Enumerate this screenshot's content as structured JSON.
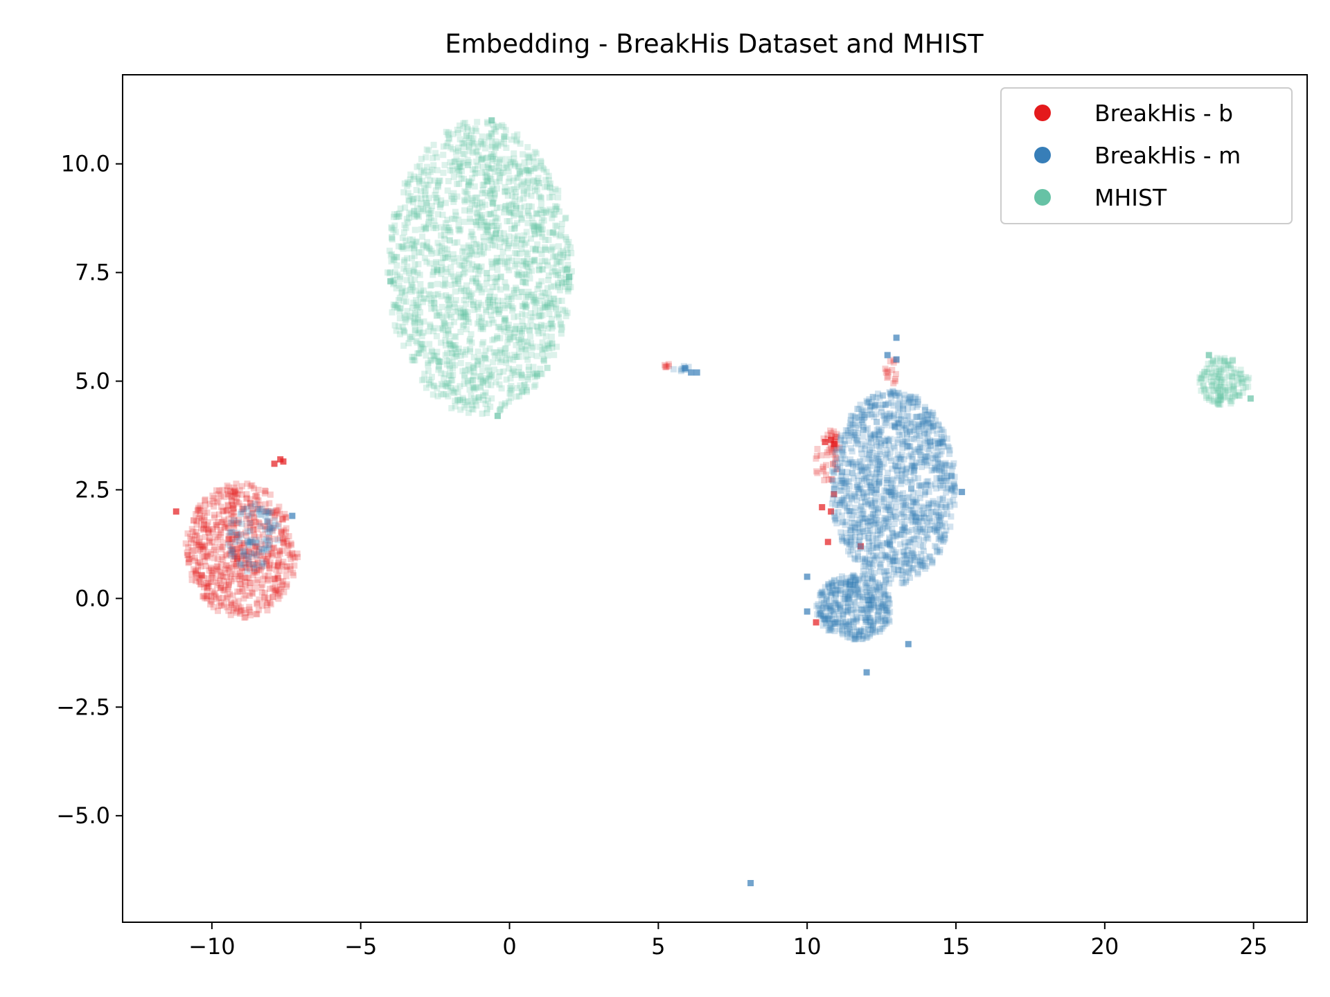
{
  "chart_data": {
    "type": "scatter",
    "title": "Embedding - BreakHis Dataset and MHIST",
    "xlabel": "",
    "ylabel": "",
    "xlim": [
      -13,
      26.8
    ],
    "ylim": [
      -7.45,
      12.05
    ],
    "xticks": [
      -10,
      -5,
      0,
      5,
      10,
      15,
      20,
      25
    ],
    "xtick_labels": [
      "−10",
      "−5",
      "0",
      "5",
      "10",
      "15",
      "20",
      "25"
    ],
    "yticks": [
      -5.0,
      -2.5,
      0.0,
      2.5,
      5.0,
      7.5,
      10.0
    ],
    "ytick_labels": [
      "−5.0",
      "−2.5",
      "0.0",
      "2.5",
      "5.0",
      "7.5",
      "10.0"
    ],
    "grid": false,
    "legend_position": "top-right",
    "series": [
      {
        "name": "BreakHis - b",
        "color": "#e41a1c",
        "marker": "square",
        "clusters": [
          {
            "cx": -9.0,
            "cy": 1.1,
            "rx": 1.9,
            "ry": 1.55,
            "n": 650
          },
          {
            "cx": 10.7,
            "cy": 3.3,
            "rx": 0.5,
            "ry": 0.6,
            "n": 50
          },
          {
            "cx": 12.9,
            "cy": 5.2,
            "rx": 0.3,
            "ry": 0.3,
            "n": 15
          },
          {
            "cx": 5.3,
            "cy": 5.35,
            "rx": 0.1,
            "ry": 0.05,
            "n": 6
          }
        ],
        "points": [
          [
            -11.2,
            2.0
          ],
          [
            -7.9,
            3.1
          ],
          [
            -7.7,
            3.2
          ],
          [
            -7.6,
            3.15
          ],
          [
            10.8,
            3.65
          ],
          [
            10.6,
            3.6
          ],
          [
            10.9,
            3.55
          ],
          [
            10.5,
            2.1
          ],
          [
            10.8,
            2.0
          ],
          [
            10.3,
            -0.55
          ],
          [
            10.7,
            1.3
          ],
          [
            10.9,
            2.4
          ],
          [
            11.8,
            1.2
          ]
        ]
      },
      {
        "name": "BreakHis - m",
        "color": "#377eb8",
        "marker": "square",
        "clusters": [
          {
            "cx": 12.9,
            "cy": 2.55,
            "rx": 2.1,
            "ry": 2.25,
            "n": 1200
          },
          {
            "cx": 11.6,
            "cy": -0.2,
            "rx": 1.3,
            "ry": 0.75,
            "n": 400
          },
          {
            "cx": -8.6,
            "cy": 1.4,
            "rx": 0.9,
            "ry": 0.8,
            "n": 100
          },
          {
            "cx": 5.8,
            "cy": 5.3,
            "rx": 0.35,
            "ry": 0.08,
            "n": 8
          }
        ],
        "points": [
          [
            8.1,
            -6.55
          ],
          [
            13.0,
            6.0
          ],
          [
            12.0,
            -1.7
          ],
          [
            13.4,
            -1.05
          ],
          [
            15.2,
            2.45
          ],
          [
            12.7,
            5.6
          ],
          [
            -7.3,
            1.9
          ],
          [
            6.3,
            5.2
          ],
          [
            6.1,
            5.2
          ],
          [
            5.9,
            5.3
          ],
          [
            10.0,
            0.5
          ],
          [
            10.0,
            -0.3
          ],
          [
            13.0,
            5.5
          ]
        ]
      },
      {
        "name": "MHIST",
        "color": "#66c2a5",
        "marker": "square",
        "clusters": [
          {
            "cx": -1.0,
            "cy": 7.6,
            "rx": 3.1,
            "ry": 3.4,
            "n": 1700
          },
          {
            "cx": 24.0,
            "cy": 5.0,
            "rx": 0.85,
            "ry": 0.55,
            "n": 160
          }
        ],
        "points": [
          [
            -0.6,
            11.0
          ],
          [
            -4.0,
            7.3
          ],
          [
            2.0,
            7.4
          ],
          [
            -0.4,
            4.2
          ],
          [
            23.5,
            5.6
          ],
          [
            24.9,
            4.6
          ]
        ]
      }
    ]
  }
}
